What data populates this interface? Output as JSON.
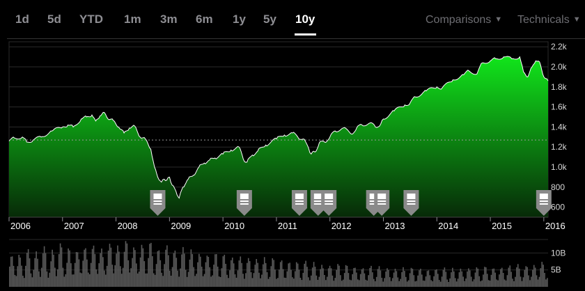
{
  "range_tabs": [
    {
      "label": "1d",
      "active": false
    },
    {
      "label": "5d",
      "active": false
    },
    {
      "label": "YTD",
      "active": false
    },
    {
      "label": "1m",
      "active": false
    },
    {
      "label": "3m",
      "active": false
    },
    {
      "label": "6m",
      "active": false
    },
    {
      "label": "1y",
      "active": false
    },
    {
      "label": "5y",
      "active": false
    },
    {
      "label": "10y",
      "active": true
    }
  ],
  "menus": {
    "comparisons_label": "Comparisons",
    "technicals_label": "Technicals"
  },
  "colors": {
    "background": "#000000",
    "price_fill_top": "#11e51b",
    "price_fill_bottom": "#072a08",
    "price_line": "#ffffff",
    "volume_fill": "#5a5a5a",
    "grid": "#2a2a2a",
    "text_muted": "#8e8e93",
    "marker": "#8a8a8a"
  },
  "chart_data": [
    {
      "type": "area",
      "title": "",
      "x_ticks": [
        "2006",
        "2007",
        "2008",
        "2009",
        "2010",
        "2011",
        "2012",
        "2013",
        "2014",
        "2015",
        "2016"
      ],
      "y_ticks": [
        "2.2k",
        "2.0k",
        "1.8k",
        "1.6k",
        "1.4k",
        "1.2k",
        "1.0k",
        "800",
        "600"
      ],
      "ylim": [
        500,
        2250
      ],
      "xlim": [
        2006.0,
        2016.08
      ],
      "reference_line": 1270,
      "legend": "none",
      "grid": true,
      "series": [
        {
          "x": [
            2006.0,
            2006.1,
            2006.25,
            2006.33,
            2006.45,
            2006.6,
            2006.8,
            2007.0,
            2007.1,
            2007.2,
            2007.35,
            2007.45,
            2007.55,
            2007.62,
            2007.7,
            2007.78,
            2007.85,
            2007.95,
            2008.05,
            2008.15,
            2008.25,
            2008.35,
            2008.45,
            2008.55,
            2008.65,
            2008.72,
            2008.78,
            2008.85,
            2008.9,
            2008.95,
            2009.0,
            2009.05,
            2009.12,
            2009.18,
            2009.25,
            2009.35,
            2009.45,
            2009.55,
            2009.65,
            2009.75,
            2009.85,
            2010.0,
            2010.15,
            2010.3,
            2010.38,
            2010.45,
            2010.55,
            2010.65,
            2010.8,
            2011.0,
            2011.15,
            2011.3,
            2011.4,
            2011.5,
            2011.6,
            2011.65,
            2011.72,
            2011.8,
            2011.9,
            2012.0,
            2012.1,
            2012.25,
            2012.4,
            2012.5,
            2012.6,
            2012.75,
            2012.85,
            2012.95,
            2013.0,
            2013.2,
            2013.4,
            2013.5,
            2013.6,
            2013.8,
            2014.0,
            2014.1,
            2014.3,
            2014.5,
            2014.6,
            2014.75,
            2014.85,
            2015.0,
            2015.1,
            2015.25,
            2015.4,
            2015.55,
            2015.62,
            2015.7,
            2015.78,
            2015.85,
            2015.92,
            2016.0,
            2016.08
          ],
          "values": [
            1260,
            1290,
            1300,
            1250,
            1270,
            1300,
            1360,
            1400,
            1420,
            1400,
            1480,
            1500,
            1520,
            1460,
            1510,
            1545,
            1480,
            1465,
            1400,
            1340,
            1390,
            1410,
            1300,
            1280,
            1180,
            1000,
            900,
            850,
            880,
            870,
            900,
            820,
            760,
            690,
            800,
            880,
            920,
            1000,
            1040,
            1070,
            1090,
            1130,
            1170,
            1200,
            1080,
            1050,
            1120,
            1160,
            1220,
            1280,
            1320,
            1340,
            1300,
            1280,
            1190,
            1130,
            1150,
            1240,
            1250,
            1300,
            1360,
            1390,
            1330,
            1390,
            1420,
            1440,
            1400,
            1430,
            1480,
            1560,
            1620,
            1640,
            1700,
            1760,
            1800,
            1790,
            1870,
            1920,
            1960,
            1930,
            2040,
            2060,
            2080,
            2100,
            2080,
            2100,
            1950,
            1900,
            2000,
            2060,
            2050,
            1900,
            1860
          ]
        }
      ],
      "event_markers": [
        2008.78,
        2010.4,
        2011.43,
        2011.78,
        2011.98,
        2012.82,
        2012.97,
        2013.52,
        2016.0
      ]
    },
    {
      "type": "bar",
      "title": "",
      "y_ticks": [
        "10B",
        "5B"
      ],
      "ylim": [
        0,
        14
      ],
      "legend": "none",
      "grid": true,
      "series": [
        {
          "x_start": 2006.0,
          "x_end": 2016.08,
          "values": [
            7.5,
            8.2,
            7.1,
            9.0,
            7.9,
            8.4,
            9.6,
            7.7,
            8.8,
            10.4,
            8.1,
            9.3,
            8.6,
            10.1,
            9.4,
            9.9,
            10.6,
            9.1,
            10.2,
            11.4,
            9.8,
            10.9,
            11.6,
            9.5,
            10.3,
            9.7,
            10.8,
            9.2,
            8.8,
            9.9,
            9.3,
            8.6,
            9.4,
            8.3,
            8.9,
            7.9,
            8.4,
            7.6,
            8.1,
            7.3,
            7.8,
            7.0,
            7.5,
            7.2,
            6.8,
            7.4,
            6.6,
            7.1,
            6.3,
            6.9,
            6.1,
            6.6,
            5.9,
            6.4,
            5.6,
            6.2,
            5.4,
            5.9,
            5.2,
            5.7,
            5.0,
            5.5,
            4.8,
            5.3,
            4.7,
            5.1,
            4.5,
            5.0,
            4.6,
            4.9,
            4.4,
            4.8,
            4.3,
            4.7,
            4.2,
            4.6,
            4.1,
            4.5,
            4.0,
            4.4,
            4.2,
            4.6,
            4.1,
            4.5,
            4.3,
            4.8,
            4.4,
            4.7,
            4.3,
            4.9,
            4.5,
            5.0,
            4.6,
            5.1,
            4.7,
            5.4,
            4.9,
            5.6,
            5.2,
            6.0,
            5.8
          ]
        }
      ]
    }
  ]
}
